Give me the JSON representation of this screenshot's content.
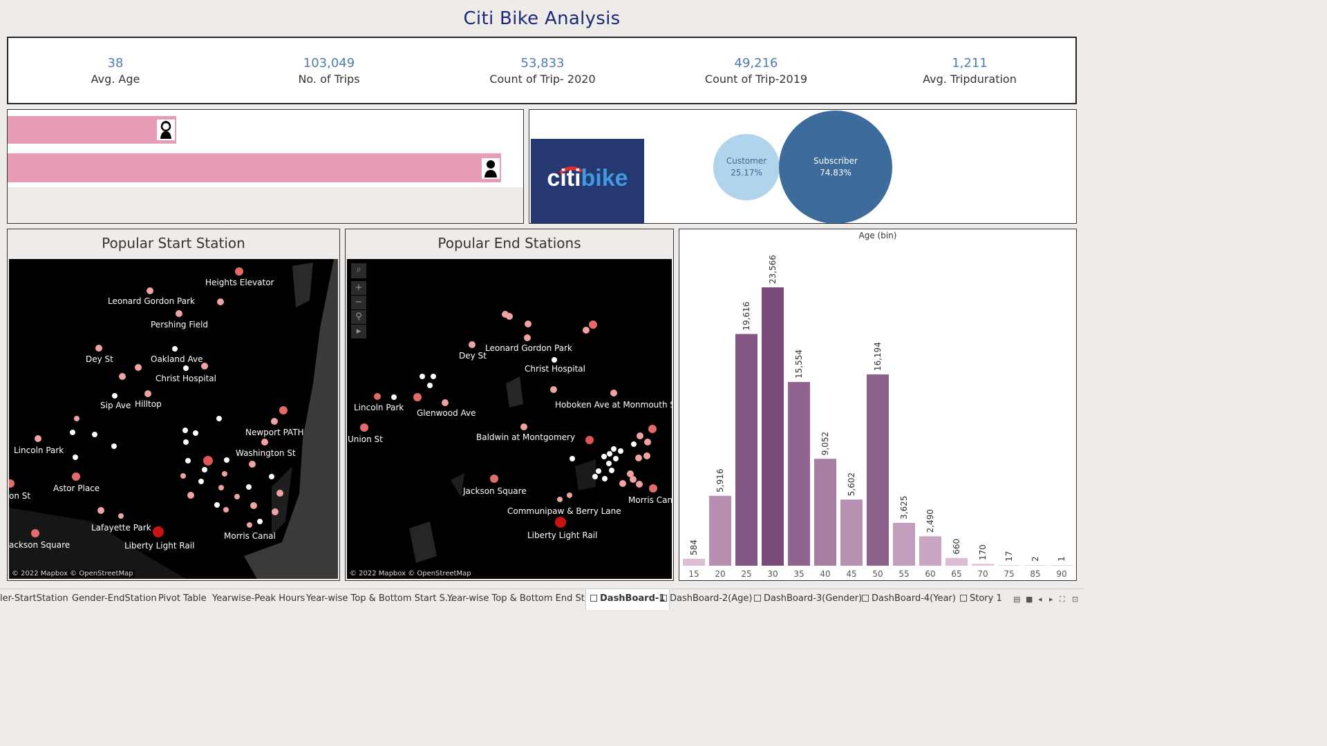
{
  "header": {
    "title": "Citi Bike Analysis"
  },
  "kpis": [
    {
      "value": "38",
      "label": "Avg. Age"
    },
    {
      "value": "103,049",
      "label": "No. of Trips"
    },
    {
      "value": "53,833",
      "label": "Count of Trip- 2020"
    },
    {
      "value": "49,216",
      "label": "Count of Trip-2019"
    },
    {
      "value": "1,211",
      "label": "Avg. Tripduration"
    }
  ],
  "gender_bars": [
    {
      "icon": "female-icon",
      "fraction": 0.33
    },
    {
      "icon": "male-icon",
      "fraction": 0.965
    }
  ],
  "logo": {
    "part1": "citi",
    "part2": "bike"
  },
  "usertype": [
    {
      "name": "Customer",
      "percent": "25.17%",
      "fill": "#afd4ec",
      "text_color": "#3a6a90"
    },
    {
      "name": "Subscriber",
      "percent": "74.83%",
      "fill": "#3d6b9b",
      "text_color": "#ffffff"
    }
  ],
  "map_start": {
    "title": "Popular Start Station",
    "credit": "© 2022 Mapbox © OpenStreetMap",
    "labels": [
      "Heights Elevator",
      "Leonard Gordon Park",
      "Pershing Field",
      "Dey St",
      "Oakland Ave",
      "Christ Hospital",
      "Sip Ave",
      "Hilltop",
      "Newport PATH",
      "Washington St",
      "Lincoln Park",
      "Astor Place",
      "on St",
      "Lafayette Park",
      "Morris Canal",
      "Liberty Light Rail",
      "ackson Square"
    ]
  },
  "map_end": {
    "title": "Popular End Stations",
    "credit": "© 2022 Mapbox © OpenStreetMap",
    "labels": [
      "Leonard Gordon Park",
      "Dey St",
      "Christ Hospital",
      "Lincoln Park",
      "Glenwood Ave",
      "Hoboken Ave at Monmouth St",
      "Union St",
      "Baldwin at Montgomery",
      "Jackson Square",
      "Morris Can",
      "Communipaw & Berry Lane",
      "Liberty Light Rail"
    ],
    "tools": [
      "search-icon",
      "zoom-in-icon",
      "zoom-out-icon",
      "pin-icon",
      "play-icon"
    ]
  },
  "chart_data": {
    "type": "bar",
    "title": "Age (bin)",
    "categories": [
      "15",
      "20",
      "25",
      "30",
      "35",
      "40",
      "45",
      "50",
      "55",
      "60",
      "65",
      "70",
      "75",
      "85",
      "90"
    ],
    "values": [
      584,
      5916,
      19616,
      23566,
      15554,
      9052,
      5602,
      16194,
      3625,
      2490,
      660,
      170,
      17,
      2,
      1
    ],
    "value_labels": [
      "584",
      "5,916",
      "19,616",
      "23,566",
      "15,554",
      "9,052",
      "5,602",
      "16,194",
      "3,625",
      "2,490",
      "660",
      "170",
      "17",
      "2",
      "1"
    ],
    "ylim": [
      0,
      23566
    ],
    "grid": false,
    "colors": {
      "low": "#f0d3e6",
      "high": "#7a4a7a"
    }
  },
  "tabs": [
    "ler-StartStation",
    "Gender-EndStation",
    "Pivot Table",
    "Yearwise-Peak Hours",
    "Year-wise Top & Bottom Start S...",
    "Year-wise Top & Bottom End St...",
    "DashBoard-1",
    "DashBoard-2(Age)",
    "DashBoard-3(Gender)",
    "DashBoard-4(Year)",
    "Story 1"
  ],
  "active_tab": "DashBoard-1"
}
